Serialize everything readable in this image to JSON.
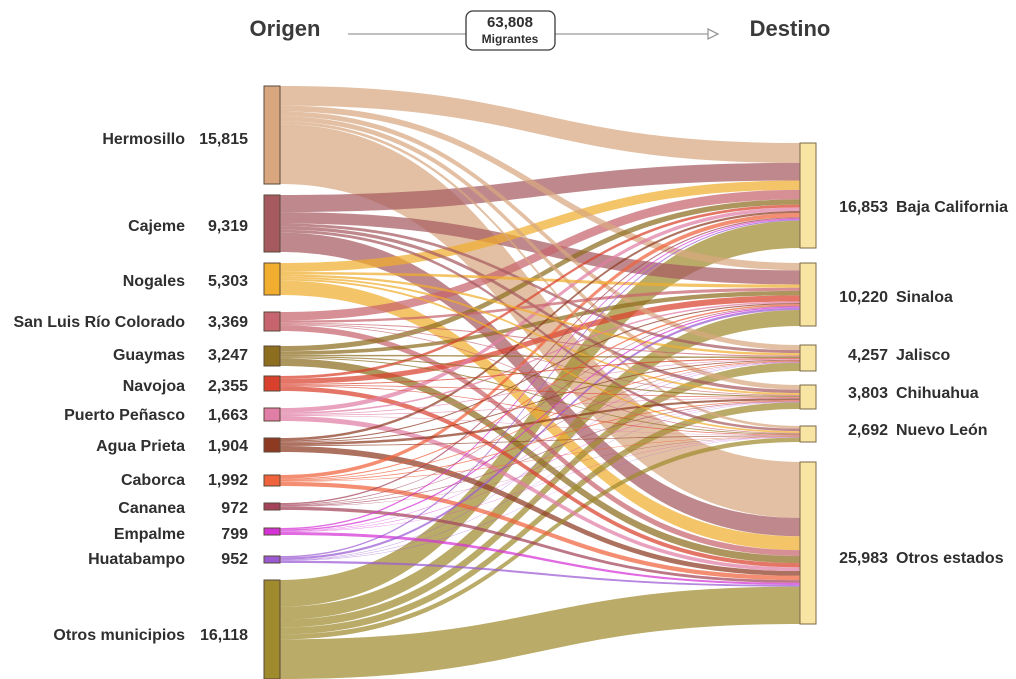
{
  "header": {
    "left": "Origen",
    "right": "Destino",
    "total_value": "63,808",
    "total_label": "Migrantes"
  },
  "colors": {
    "Hermosillo": "#d8a77f",
    "Cajeme": "#a65a5f",
    "Nogales": "#f0ad2e",
    "San Luis Río Colorado": "#c8646d",
    "Guaymas": "#8d6e1e",
    "Navojoa": "#d9412e",
    "Puerto Peñasco": "#e07ea5",
    "Agua Prieta": "#8e3a22",
    "Caborca": "#f0623c",
    "Cananea": "#a3445a",
    "Empalme": "#d532d6",
    "Huatabampo": "#9b5ad2",
    "Otros municipios": "#9f8a2e",
    "destino": "#f8e4a3"
  },
  "chart_data": {
    "type": "sankey",
    "sources": [
      {
        "name": "Hermosillo",
        "value": 15815,
        "value_label": "15,815"
      },
      {
        "name": "Cajeme",
        "value": 9319,
        "value_label": "9,319"
      },
      {
        "name": "Nogales",
        "value": 5303,
        "value_label": "5,303"
      },
      {
        "name": "San Luis Río Colorado",
        "value": 3369,
        "value_label": "3,369"
      },
      {
        "name": "Guaymas",
        "value": 3247,
        "value_label": "3,247"
      },
      {
        "name": "Navojoa",
        "value": 2355,
        "value_label": "2,355"
      },
      {
        "name": "Puerto Peñasco",
        "value": 1663,
        "value_label": "1,663"
      },
      {
        "name": "Agua Prieta",
        "value": 1904,
        "value_label": "1,904"
      },
      {
        "name": "Caborca",
        "value": 1992,
        "value_label": "1,992"
      },
      {
        "name": "Cananea",
        "value": 972,
        "value_label": "972"
      },
      {
        "name": "Empalme",
        "value": 799,
        "value_label": "799"
      },
      {
        "name": "Huatabampo",
        "value": 952,
        "value_label": "952"
      },
      {
        "name": "Otros municipios",
        "value": 16118,
        "value_label": "16,118"
      }
    ],
    "targets": [
      {
        "name": "Baja California",
        "value": 16853,
        "value_label": "16,853"
      },
      {
        "name": "Sinaloa",
        "value": 10220,
        "value_label": "10,220"
      },
      {
        "name": "Jalisco",
        "value": 4257,
        "value_label": "4,257"
      },
      {
        "name": "Chihuahua",
        "value": 3803,
        "value_label": "3,803"
      },
      {
        "name": "Nuevo León",
        "value": 2692,
        "value_label": "2,692"
      },
      {
        "name": "Otros estados",
        "value": 25983,
        "value_label": "25,983"
      }
    ]
  }
}
